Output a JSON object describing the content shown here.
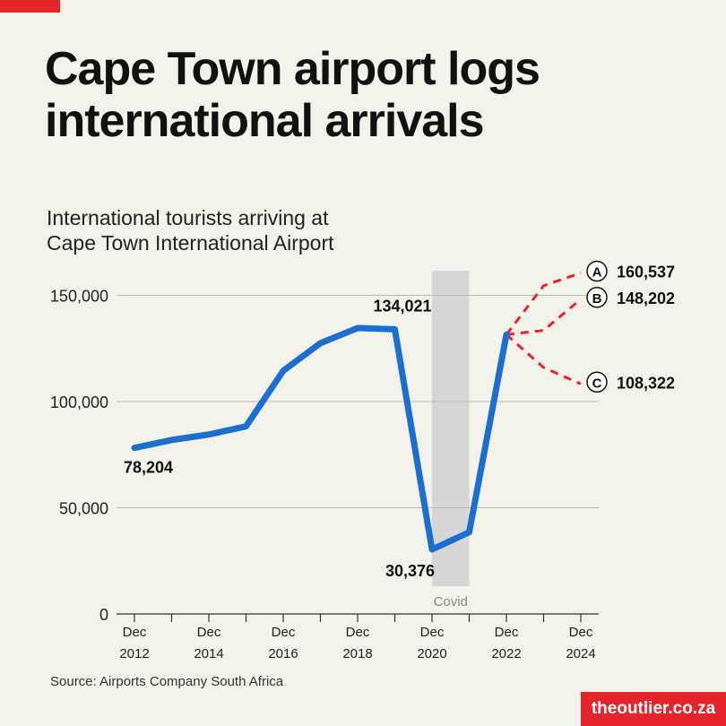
{
  "header": {
    "title_line1": "Cape Town airport logs",
    "title_line2": "international arrivals"
  },
  "chart_data": {
    "type": "line",
    "title": "Cape Town airport logs international arrivals",
    "subtitle": "International tourists arriving at Cape Town International Airport",
    "subtitle_line1": "International tourists arriving at",
    "subtitle_line2": "Cape Town International Airport",
    "x_ticks": [
      {
        "x": 2012,
        "label": [
          "Dec",
          "2012"
        ]
      },
      {
        "x": 2014,
        "label": [
          "Dec",
          "2014"
        ]
      },
      {
        "x": 2016,
        "label": [
          "Dec",
          "2016"
        ]
      },
      {
        "x": 2018,
        "label": [
          "Dec",
          "2018"
        ]
      },
      {
        "x": 2020,
        "label": [
          "Dec",
          "2020"
        ]
      },
      {
        "x": 2022,
        "label": [
          "Dec",
          "2022"
        ]
      },
      {
        "x": 2024,
        "label": [
          "Dec",
          "2024"
        ]
      }
    ],
    "xlim": [
      2012,
      2024
    ],
    "ylim": [
      0,
      150000
    ],
    "y_ticks": [
      {
        "value": 0,
        "label": "0"
      },
      {
        "value": 50000,
        "label": "50,000"
      },
      {
        "value": 100000,
        "label": "100,000"
      },
      {
        "value": 150000,
        "label": "150,000"
      }
    ],
    "grid": true,
    "series": [
      {
        "name": "",
        "color": "#1a6fcf",
        "style": "solid",
        "points": [
          {
            "x": 2012,
            "y": 78204
          },
          {
            "x": 2013,
            "y": 81900
          },
          {
            "x": 2014,
            "y": 84500
          },
          {
            "x": 2015,
            "y": 88300
          },
          {
            "x": 2016,
            "y": 114500
          },
          {
            "x": 2017,
            "y": 127500
          },
          {
            "x": 2018,
            "y": 134600
          },
          {
            "x": 2019,
            "y": 134021
          },
          {
            "x": 2020,
            "y": 30376
          },
          {
            "x": 2021,
            "y": 38500
          },
          {
            "x": 2022,
            "y": 131500
          }
        ]
      }
    ],
    "scenarios": [
      {
        "name": "A",
        "color": "#e4252b",
        "style": "dashed",
        "points": [
          {
            "x": 2022,
            "y": 131500
          },
          {
            "x": 2023,
            "y": 154500
          },
          {
            "x": 2024,
            "y": 160537
          }
        ],
        "value_label": "160,537"
      },
      {
        "name": "B",
        "color": "#e4252b",
        "style": "dashed",
        "points": [
          {
            "x": 2022,
            "y": 131500
          },
          {
            "x": 2023,
            "y": 133500
          },
          {
            "x": 2024,
            "y": 148202
          }
        ],
        "value_label": "148,202"
      },
      {
        "name": "C",
        "color": "#e4252b",
        "style": "dashed",
        "points": [
          {
            "x": 2022,
            "y": 131500
          },
          {
            "x": 2023,
            "y": 116000
          },
          {
            "x": 2024,
            "y": 108322
          }
        ],
        "value_label": "108,322"
      }
    ],
    "annotations": [
      {
        "x": 2012,
        "y": 78204,
        "text": "78,204",
        "position": "below"
      },
      {
        "x": 2019,
        "y": 134021,
        "text": "134,021",
        "position": "above-left"
      },
      {
        "x": 2020,
        "y": 30376,
        "text": "30,376",
        "position": "below-left"
      }
    ],
    "shaded_region": {
      "x_start": 2020,
      "x_end": 2021,
      "label": "Covid",
      "color": "#d6d6d6"
    }
  },
  "footer": {
    "source": "Source: Airports Company South Africa",
    "brand": "theoutlier.co.za"
  }
}
